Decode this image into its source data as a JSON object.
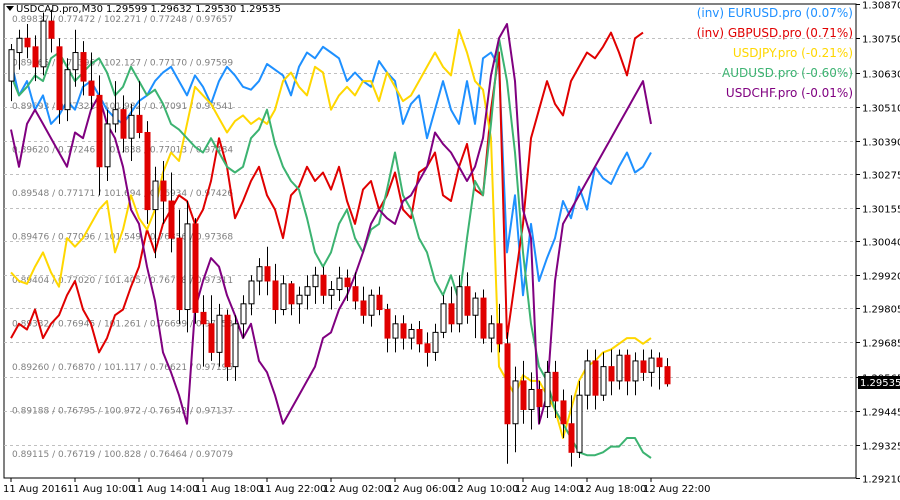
{
  "header": {
    "symbol_text": "USDCAD.pro,M30",
    "ohlc_text": "1.29599 1.29632 1.29530 1.29535"
  },
  "current_price": "1.29535",
  "legend": [
    {
      "label": "(inv) EURUSD.pro (0.07%)",
      "color": "#1e90ff"
    },
    {
      "label": "(inv) GBPUSD.pro (0.71%)",
      "color": "#e00000"
    },
    {
      "label": "USDJPY.pro (-0.21%)",
      "color": "#ffd700"
    },
    {
      "label": "AUDUSD.pro (-0.60%)",
      "color": "#3cb371"
    },
    {
      "label": "USDCHF.pro (-0.01%)",
      "color": "#800080"
    }
  ],
  "overlay_labels": [
    "0.89837 / 0.77472 / 102.271 / 0.77248 / 0.97657",
    "0.89765 / 0.77396 / 102.127 / 0.77170 / 0.97599",
    "0.89693 / 0.77321 / 101.982 / 0.77091 / 0.97541",
    "0.89620 / 0.77246 / 101.838 / 0.77013 / 0.97484",
    "0.89548 / 0.77171 / 101.694 / 0.76934 / 0.97426",
    "0.89476 / 0.77096 / 101.549 / 0.76856 / 0.97368",
    "0.89404 / 0.77020 / 101.405 / 0.76778 / 0.97311",
    "0.89332 / 0.76945 / 101.261 / 0.76699 / 0.97253",
    "0.89260 / 0.76870 / 101.117 / 0.76621 / 0.97195",
    "0.89188 / 0.76795 / 100.972 / 0.76542 / 0.97137",
    "0.89115 / 0.76719 / 100.828 / 0.76464 / 0.97079"
  ],
  "chart_data": {
    "type": "candlestick",
    "symbol": "USDCAD.pro",
    "timeframe": "M30",
    "ylim": [
      1.2921,
      1.3087
    ],
    "y_ticks": [
      "1.30870",
      "1.30750",
      "1.30630",
      "1.30510",
      "1.30390",
      "1.30275",
      "1.30155",
      "1.30040",
      "1.29920",
      "1.29805",
      "1.29685",
      "1.29565",
      "1.29445",
      "1.29325",
      "1.29210"
    ],
    "x_ticks": [
      {
        "label": "11 Aug 2016",
        "bar": 0
      },
      {
        "label": "11 Aug 10:00",
        "bar": 8
      },
      {
        "label": "11 Aug 14:00",
        "bar": 16
      },
      {
        "label": "11 Aug 18:00",
        "bar": 24
      },
      {
        "label": "11 Aug 22:00",
        "bar": 32
      },
      {
        "label": "12 Aug 02:00",
        "bar": 40
      },
      {
        "label": "12 Aug 06:00",
        "bar": 48
      },
      {
        "label": "12 Aug 10:00",
        "bar": 56
      },
      {
        "label": "12 Aug 14:00",
        "bar": 64
      },
      {
        "label": "12 Aug 18:00",
        "bar": 72
      },
      {
        "label": "12 Aug 22:00",
        "bar": 80
      }
    ],
    "candles": [
      [
        1.306,
        1.3073,
        1.3053,
        1.3071
      ],
      [
        1.307,
        1.3078,
        1.3064,
        1.3075
      ],
      [
        1.3075,
        1.308,
        1.3068,
        1.3072
      ],
      [
        1.3072,
        1.3076,
        1.306,
        1.3065
      ],
      [
        1.3065,
        1.3084,
        1.3062,
        1.3081
      ],
      [
        1.3081,
        1.3085,
        1.307,
        1.3075
      ],
      [
        1.3072,
        1.3075,
        1.3045,
        1.305
      ],
      [
        1.305,
        1.3068,
        1.3046,
        1.3064
      ],
      [
        1.3064,
        1.3078,
        1.3058,
        1.307
      ],
      [
        1.307,
        1.3074,
        1.3055,
        1.306
      ],
      [
        1.306,
        1.307,
        1.305,
        1.3055
      ],
      [
        1.3055,
        1.3062,
        1.302,
        1.303
      ],
      [
        1.303,
        1.305,
        1.3025,
        1.3045
      ],
      [
        1.3045,
        1.306,
        1.3042,
        1.305
      ],
      [
        1.305,
        1.3055,
        1.3035,
        1.304
      ],
      [
        1.304,
        1.3052,
        1.3032,
        1.3048
      ],
      [
        1.3048,
        1.306,
        1.304,
        1.3042
      ],
      [
        1.3042,
        1.3046,
        1.301,
        1.3015
      ],
      [
        1.3015,
        1.303,
        1.2998,
        1.3025
      ],
      [
        1.3025,
        1.3032,
        1.301,
        1.3018
      ],
      [
        1.3018,
        1.3028,
        1.3,
        1.3005
      ],
      [
        1.3005,
        1.3015,
        1.2975,
        1.298
      ],
      [
        1.298,
        1.3018,
        1.2972,
        1.301
      ],
      [
        1.301,
        1.3012,
        1.2975,
        1.2979
      ],
      [
        1.2979,
        1.2985,
        1.296,
        1.2975
      ],
      [
        1.2975,
        1.2985,
        1.2962,
        1.2965
      ],
      [
        1.2965,
        1.2982,
        1.296,
        1.2978
      ],
      [
        1.2978,
        1.298,
        1.2955,
        1.296
      ],
      [
        1.296,
        1.2978,
        1.2955,
        1.2975
      ],
      [
        1.2975,
        1.2985,
        1.297,
        1.2982
      ],
      [
        1.2982,
        1.2992,
        1.2978,
        1.299
      ],
      [
        1.299,
        1.2998,
        1.2985,
        1.2995
      ],
      [
        1.2995,
        1.3002,
        1.2985,
        1.299
      ],
      [
        1.299,
        1.2996,
        1.2975,
        1.298
      ],
      [
        1.298,
        1.2992,
        1.2978,
        1.2989
      ],
      [
        1.2989,
        1.299,
        1.2978,
        1.2982
      ],
      [
        1.2982,
        1.2988,
        1.2975,
        1.2985
      ],
      [
        1.2985,
        1.2992,
        1.298,
        1.2988
      ],
      [
        1.2988,
        1.2995,
        1.2982,
        1.2992
      ],
      [
        1.2992,
        1.2995,
        1.2982,
        1.2985
      ],
      [
        1.2985,
        1.299,
        1.298,
        1.2987
      ],
      [
        1.2987,
        1.2995,
        1.2983,
        1.2991
      ],
      [
        1.2991,
        1.2994,
        1.2983,
        1.2988
      ],
      [
        1.2988,
        1.2993,
        1.298,
        1.2983
      ],
      [
        1.2983,
        1.2988,
        1.2975,
        1.2978
      ],
      [
        1.2978,
        1.2987,
        1.2974,
        1.2985
      ],
      [
        1.2985,
        1.2988,
        1.2978,
        1.298
      ],
      [
        1.298,
        1.2982,
        1.2965,
        1.297
      ],
      [
        1.297,
        1.2978,
        1.2965,
        1.2975
      ],
      [
        1.2975,
        1.2978,
        1.2966,
        1.297
      ],
      [
        1.297,
        1.2975,
        1.2966,
        1.2973
      ],
      [
        1.2973,
        1.2976,
        1.2965,
        1.2968
      ],
      [
        1.2968,
        1.2972,
        1.296,
        1.2965
      ],
      [
        1.2965,
        1.2975,
        1.2962,
        1.2972
      ],
      [
        1.2972,
        1.2985,
        1.297,
        1.2982
      ],
      [
        1.2982,
        1.2988,
        1.2972,
        1.2975
      ],
      [
        1.2975,
        1.2992,
        1.2972,
        1.2988
      ],
      [
        1.2988,
        1.2993,
        1.2975,
        1.2978
      ],
      [
        1.2978,
        1.2986,
        1.297,
        1.2984
      ],
      [
        1.2984,
        1.2987,
        1.2968,
        1.297
      ],
      [
        1.297,
        1.2978,
        1.2965,
        1.2975
      ],
      [
        1.2975,
        1.2982,
        1.2965,
        1.2968
      ],
      [
        1.2968,
        1.2972,
        1.2926,
        1.294
      ],
      [
        1.294,
        1.296,
        1.293,
        1.2955
      ],
      [
        1.2955,
        1.2962,
        1.294,
        1.2945
      ],
      [
        1.2945,
        1.2958,
        1.2938,
        1.2952
      ],
      [
        1.2952,
        1.2955,
        1.294,
        1.2946
      ],
      [
        1.2946,
        1.2962,
        1.2942,
        1.2958
      ],
      [
        1.2958,
        1.2962,
        1.2942,
        1.2948
      ],
      [
        1.2948,
        1.2952,
        1.2935,
        1.294
      ],
      [
        1.294,
        1.295,
        1.2925,
        1.293
      ],
      [
        1.293,
        1.2955,
        1.2928,
        1.295
      ],
      [
        1.295,
        1.2966,
        1.2945,
        1.2962
      ],
      [
        1.2962,
        1.2966,
        1.2945,
        1.295
      ],
      [
        1.295,
        1.2965,
        1.2948,
        1.296
      ],
      [
        1.296,
        1.2966,
        1.295,
        1.2955
      ],
      [
        1.2955,
        1.2966,
        1.2952,
        1.2964
      ],
      [
        1.2964,
        1.2966,
        1.295,
        1.2955
      ],
      [
        1.2955,
        1.2965,
        1.295,
        1.2962
      ],
      [
        1.2962,
        1.2966,
        1.2955,
        1.2958
      ],
      [
        1.2958,
        1.2966,
        1.2953,
        1.2963
      ],
      [
        1.2963,
        1.2965,
        1.2952,
        1.296
      ],
      [
        1.296,
        1.2963,
        1.2953,
        1.2954
      ]
    ],
    "overlays": [
      {
        "name": "(inv) EURUSD.pro",
        "color": "#1e90ff",
        "values": [
          1.3067,
          1.3055,
          1.306,
          1.305,
          1.3055,
          1.3045,
          1.3048,
          1.3053,
          1.305,
          1.3058,
          1.306,
          1.3055,
          1.305,
          1.3047,
          1.3045,
          1.3049,
          1.3053,
          1.3055,
          1.306,
          1.3063,
          1.3065,
          1.306,
          1.3055,
          1.3062,
          1.3058,
          1.3052,
          1.306,
          1.3065,
          1.3062,
          1.3058,
          1.3057,
          1.306,
          1.3066,
          1.3064,
          1.3062,
          1.3055,
          1.3065,
          1.307,
          1.3068,
          1.3072,
          1.307,
          1.3068,
          1.306,
          1.3063,
          1.306,
          1.3058,
          1.3067,
          1.3063,
          1.306,
          1.3045,
          1.3052,
          1.3055,
          1.304,
          1.305,
          1.306,
          1.305,
          1.3045,
          1.306,
          1.3045,
          1.3068,
          1.307,
          1.3065,
          1.3,
          1.302,
          1.2985,
          1.301,
          1.299,
          1.2998,
          1.3005,
          1.3018,
          1.3012,
          1.3023,
          1.3015,
          1.303,
          1.3026,
          1.3024,
          1.303,
          1.3035,
          1.3028,
          1.303,
          1.3035
        ]
      },
      {
        "name": "(inv) GBPUSD.pro",
        "color": "#e00000",
        "values": [
          1.297,
          1.2975,
          1.2973,
          1.298,
          1.297,
          1.2975,
          1.2978,
          1.2985,
          1.299,
          1.298,
          1.2975,
          1.2965,
          1.297,
          1.2978,
          1.298,
          1.2988,
          1.2995,
          1.3008,
          1.3,
          1.301,
          1.3015,
          1.302,
          1.3018,
          1.301,
          1.3015,
          1.3025,
          1.304,
          1.303,
          1.3012,
          1.3018,
          1.3025,
          1.303,
          1.302,
          1.3015,
          1.3005,
          1.302,
          1.3023,
          1.303,
          1.3025,
          1.3028,
          1.3022,
          1.303,
          1.3018,
          1.301,
          1.3022,
          1.3025,
          1.3015,
          1.302,
          1.3028,
          1.3015,
          1.3012,
          1.3028,
          1.303,
          1.3035,
          1.302,
          1.3018,
          1.303,
          1.3038,
          1.3022,
          1.302,
          1.305,
          1.307,
          1.297,
          1.299,
          1.301,
          1.304,
          1.305,
          1.306,
          1.3052,
          1.3048,
          1.306,
          1.3065,
          1.307,
          1.3068,
          1.3072,
          1.3077,
          1.307,
          1.3062,
          1.3075,
          1.3077
        ]
      },
      {
        "name": "USDJPY.pro",
        "color": "#ffd700",
        "values": [
          1.2993,
          1.299,
          1.2989,
          1.2995,
          1.3,
          1.2993,
          1.2988,
          1.3005,
          1.3002,
          1.3005,
          1.301,
          1.3015,
          1.3018,
          1.3,
          1.3008,
          1.302,
          1.3012,
          1.3008,
          1.3015,
          1.3028,
          1.3035,
          1.3032,
          1.3045,
          1.3058,
          1.3055,
          1.3052,
          1.3047,
          1.3042,
          1.3046,
          1.3048,
          1.3045,
          1.3047,
          1.3045,
          1.305,
          1.306,
          1.3063,
          1.3058,
          1.3055,
          1.3065,
          1.3063,
          1.305,
          1.3055,
          1.3058,
          1.3055,
          1.306,
          1.306,
          1.3053,
          1.3063,
          1.3058,
          1.3053,
          1.3055,
          1.306,
          1.3065,
          1.307,
          1.3065,
          1.3062,
          1.3078,
          1.307,
          1.306,
          1.3057,
          1.304,
          1.296,
          1.2955,
          1.295,
          1.2957,
          1.2955,
          1.2955,
          1.295,
          1.2945,
          1.2935,
          1.2945,
          1.2955,
          1.296,
          1.2962,
          1.2965,
          1.2966,
          1.2968,
          1.297,
          1.297,
          1.2968,
          1.297
        ]
      },
      {
        "name": "AUDUSD.pro",
        "color": "#3cb371",
        "values": [
          1.3062,
          1.3055,
          1.3058,
          1.3062,
          1.306,
          1.3068,
          1.307,
          1.3065,
          1.306,
          1.3063,
          1.3066,
          1.3068,
          1.3063,
          1.3055,
          1.3058,
          1.3065,
          1.306,
          1.3055,
          1.3057,
          1.3052,
          1.3045,
          1.3043,
          1.304,
          1.3037,
          1.3035,
          1.304,
          1.3035,
          1.303,
          1.3028,
          1.303,
          1.304,
          1.3043,
          1.305,
          1.3038,
          1.303,
          1.3025,
          1.3022,
          1.3012,
          1.3,
          1.2995,
          1.3,
          1.301,
          1.3015,
          1.3005,
          1.3,
          1.3008,
          1.301,
          1.3022,
          1.3035,
          1.302,
          1.3015,
          1.3005,
          1.3,
          1.299,
          1.2985,
          1.2992,
          1.2983,
          1.3005,
          1.3025,
          1.302,
          1.3045,
          1.3075,
          1.306,
          1.3035,
          1.3,
          1.2975,
          1.296,
          1.2955,
          1.2945,
          1.294,
          1.2935,
          1.293,
          1.2929,
          1.2929,
          1.293,
          1.2932,
          1.2932,
          1.2935,
          1.2935,
          1.293,
          1.2928
        ]
      },
      {
        "name": "USDCHF.pro",
        "color": "#800080",
        "values": [
          1.3043,
          1.303,
          1.3045,
          1.305,
          1.3045,
          1.304,
          1.3035,
          1.303,
          1.3042,
          1.304,
          1.305,
          1.3055,
          1.3045,
          1.304,
          1.303,
          1.3015,
          1.301,
          1.2995,
          1.2983,
          1.2965,
          1.2958,
          1.295,
          1.294,
          1.298,
          1.299,
          1.2998,
          1.2995,
          1.2985,
          1.2978,
          1.297,
          1.2975,
          1.2962,
          1.2958,
          1.295,
          1.294,
          1.2945,
          1.295,
          1.2955,
          1.296,
          1.297,
          1.2972,
          1.298,
          1.2985,
          1.2992,
          1.3,
          1.301,
          1.3015,
          1.3012,
          1.301,
          1.3018,
          1.302,
          1.3025,
          1.303,
          1.3042,
          1.3038,
          1.3035,
          1.303,
          1.3025,
          1.303,
          1.304,
          1.3062,
          1.3075,
          1.308,
          1.306,
          1.3015,
          1.3005,
          1.294,
          1.295,
          1.299,
          1.301,
          1.3015,
          1.302,
          1.3025,
          1.303,
          1.3035,
          1.304,
          1.3045,
          1.305,
          1.3055,
          1.306,
          1.3045
        ]
      }
    ]
  }
}
